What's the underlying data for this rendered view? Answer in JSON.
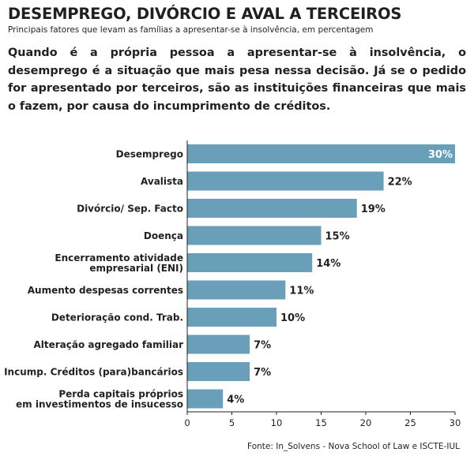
{
  "header": {
    "title": "DESEMPREGO, DIVÓRCIO E AVAL A TERCEIROS",
    "subtitle": "Principais fatores que levam as famílias a apresentar-se à insolvência, em percentagem",
    "lead": "Quando é a própria pessoa a apresentar-se à insolvência, o desemprego é a situação que mais pesa nessa decisão. Já se o pedido for apresentado por terceiros, são as instituições financeiras que mais o fazem, por causa do incumprimento de créditos."
  },
  "footer": {
    "source": "Fonte:  In_Solvens - Nova School of Law e  ISCTE-IUL"
  },
  "colors": {
    "bar": "#6a9fba",
    "text": "#231f20",
    "inside_label": "#ffffff"
  },
  "chart_data": {
    "type": "bar",
    "orientation": "horizontal",
    "categories": [
      [
        "Desemprego"
      ],
      [
        "Avalista"
      ],
      [
        "Divórcio/ Sep. Facto"
      ],
      [
        "Doença"
      ],
      [
        "Encerramento atividade",
        "empresarial (ENI)"
      ],
      [
        "Aumento despesas correntes"
      ],
      [
        "Deterioração cond. Trab."
      ],
      [
        "Alteração agregado familiar"
      ],
      [
        "Incump. Créditos (para)bancários"
      ],
      [
        "Perda capitais próprios",
        "em investimentos de insucesso"
      ]
    ],
    "values": [
      30,
      22,
      19,
      15,
      14,
      11,
      10,
      7,
      7,
      4
    ],
    "value_labels": [
      "30%",
      "22%",
      "19%",
      "15%",
      "14%",
      "11%",
      "10%",
      "7%",
      "7%",
      "4%"
    ],
    "xlim": [
      0,
      30
    ],
    "xticks": [
      "0",
      "5",
      "10",
      "15",
      "20",
      "25",
      "30"
    ],
    "grid": false,
    "xlabel": "",
    "ylabel": ""
  }
}
